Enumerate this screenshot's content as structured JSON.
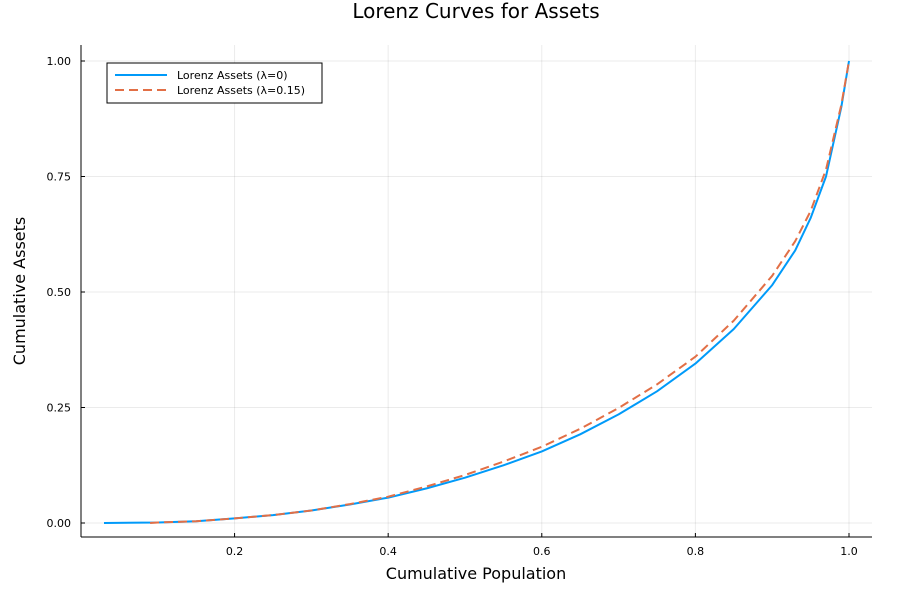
{
  "chart_data": {
    "type": "line",
    "title": "Lorenz Curves for Assets",
    "xlabel": "Cumulative Population",
    "ylabel": "Cumulative Assets",
    "xlim": [
      0.03,
      1.0
    ],
    "ylim": [
      0.0,
      1.0
    ],
    "x_ticks": [
      0.2,
      0.4,
      0.6,
      0.8,
      1.0
    ],
    "x_tick_labels": [
      "0.2",
      "0.4",
      "0.6",
      "0.8",
      "1.0"
    ],
    "y_ticks": [
      0.0,
      0.25,
      0.5,
      0.75,
      1.0
    ],
    "y_tick_labels": [
      "0.00",
      "0.25",
      "0.50",
      "0.75",
      "1.00"
    ],
    "grid": true,
    "legend_position": "top-left",
    "series": [
      {
        "name": "Lorenz Assets (λ=0)",
        "color": "#009af9",
        "style": "solid",
        "x": [
          0.03,
          0.1,
          0.15,
          0.2,
          0.25,
          0.3,
          0.35,
          0.4,
          0.45,
          0.5,
          0.55,
          0.6,
          0.65,
          0.7,
          0.75,
          0.8,
          0.85,
          0.9,
          0.93,
          0.95,
          0.97,
          0.99,
          1.0
        ],
        "y": [
          0.0,
          0.001,
          0.004,
          0.01,
          0.017,
          0.027,
          0.04,
          0.055,
          0.075,
          0.098,
          0.125,
          0.155,
          0.192,
          0.235,
          0.285,
          0.345,
          0.42,
          0.515,
          0.59,
          0.66,
          0.75,
          0.9,
          1.0
        ]
      },
      {
        "name": "Lorenz Assets (λ=0.15)",
        "color": "#e26f46",
        "style": "dashed",
        "x": [
          0.09,
          0.1,
          0.15,
          0.2,
          0.25,
          0.3,
          0.35,
          0.4,
          0.45,
          0.5,
          0.55,
          0.6,
          0.65,
          0.7,
          0.75,
          0.8,
          0.85,
          0.9,
          0.93,
          0.95,
          0.97,
          0.99,
          1.0
        ],
        "y": [
          0.0,
          0.001,
          0.004,
          0.01,
          0.017,
          0.027,
          0.041,
          0.057,
          0.079,
          0.104,
          0.133,
          0.165,
          0.204,
          0.249,
          0.3,
          0.36,
          0.438,
          0.535,
          0.61,
          0.675,
          0.765,
          0.905,
          1.0
        ]
      }
    ]
  }
}
